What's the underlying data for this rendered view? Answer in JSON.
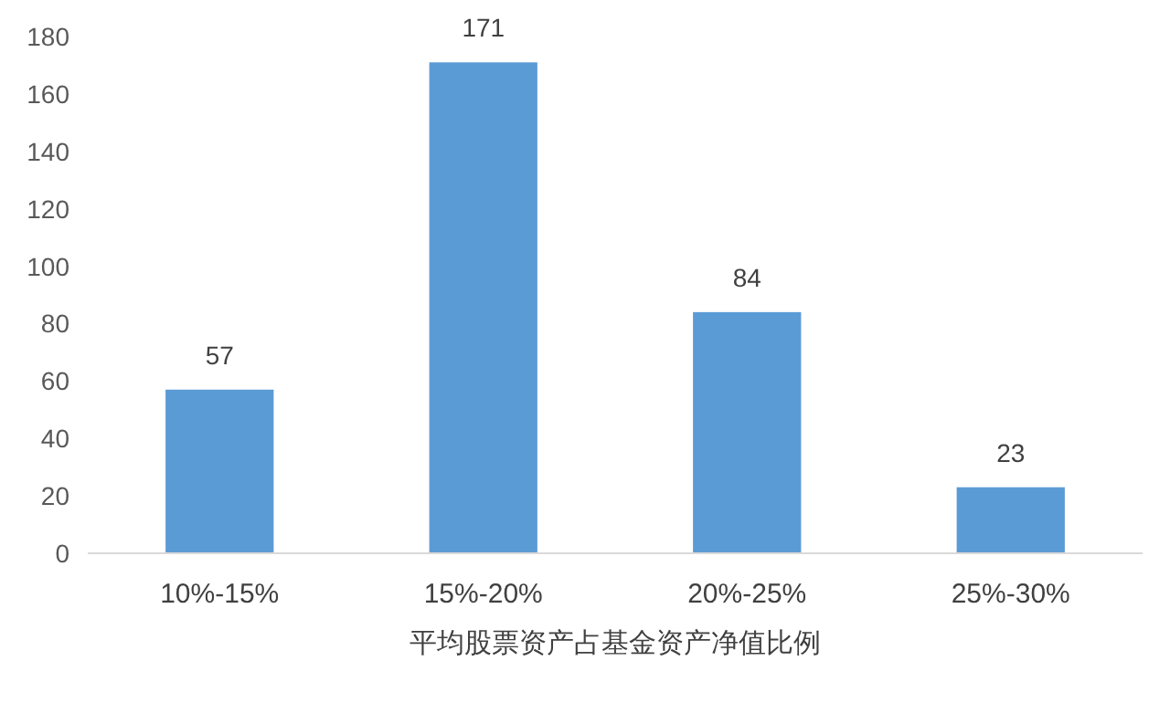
{
  "chart_data": {
    "type": "bar",
    "xlabel": "平均股票资产占基金资产净值比例",
    "categories": [
      "10%-15%",
      "15%-20%",
      "20%-25%",
      "25%-30%"
    ],
    "values": [
      57,
      171,
      84,
      23
    ],
    "color": "#5b9bd5",
    "ylim": [
      0,
      180
    ],
    "yticks": [
      0,
      20,
      40,
      60,
      80,
      100,
      120,
      140,
      160,
      180
    ],
    "grid": false,
    "data_labels": true
  }
}
